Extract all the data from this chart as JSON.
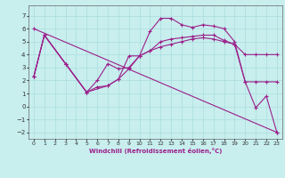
{
  "xlabel": "Windchill (Refroidissement éolien,°C)",
  "xlim": [
    -0.5,
    23.5
  ],
  "ylim": [
    -2.5,
    7.8
  ],
  "xticks": [
    0,
    1,
    2,
    3,
    4,
    5,
    6,
    7,
    8,
    9,
    10,
    11,
    12,
    13,
    14,
    15,
    16,
    17,
    18,
    19,
    20,
    21,
    22,
    23
  ],
  "yticks": [
    -2,
    -1,
    0,
    1,
    2,
    3,
    4,
    5,
    6,
    7
  ],
  "line_color": "#9b1f8a",
  "bg_color": "#c8eeee",
  "grid_color": "#aadddd",
  "lines": [
    {
      "x": [
        0,
        1,
        3,
        5,
        7,
        8,
        9,
        10,
        11,
        12,
        13,
        14,
        15,
        16,
        17,
        18,
        19,
        20,
        21,
        22,
        23
      ],
      "y": [
        2.3,
        5.5,
        3.3,
        1.1,
        1.6,
        2.1,
        3.9,
        3.9,
        5.8,
        6.8,
        6.8,
        6.3,
        6.1,
        6.3,
        6.2,
        6.0,
        5.0,
        1.9,
        -0.1,
        0.8,
        -2.0
      ]
    },
    {
      "x": [
        0,
        1,
        3,
        5,
        6,
        7,
        8,
        9,
        10,
        11,
        12,
        13,
        14,
        15,
        16,
        17,
        18,
        19,
        20,
        21,
        22,
        23
      ],
      "y": [
        2.3,
        5.5,
        3.3,
        1.1,
        1.5,
        1.6,
        2.1,
        2.9,
        3.9,
        4.3,
        4.6,
        4.8,
        5.0,
        5.2,
        5.3,
        5.2,
        5.0,
        4.8,
        1.9,
        1.9,
        1.9,
        1.9
      ]
    },
    {
      "x": [
        0,
        1,
        3,
        5,
        6,
        7,
        8,
        9,
        10,
        11,
        12,
        13,
        14,
        15,
        16,
        17,
        18,
        19,
        20,
        21,
        22,
        23
      ],
      "y": [
        2.3,
        5.5,
        3.3,
        1.1,
        2.0,
        3.3,
        2.9,
        3.0,
        3.9,
        4.3,
        5.0,
        5.2,
        5.3,
        5.4,
        5.5,
        5.5,
        5.1,
        4.8,
        4.0,
        4.0,
        4.0,
        4.0
      ]
    },
    {
      "x": [
        0,
        23
      ],
      "y": [
        6.0,
        -2.0
      ]
    }
  ]
}
